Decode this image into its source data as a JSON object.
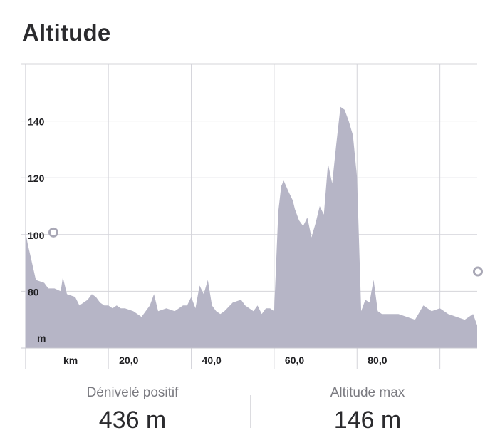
{
  "title": "Altitude",
  "chart_data": {
    "type": "area",
    "xlim": [
      -1,
      109
    ],
    "ylim": [
      60,
      160
    ],
    "x_unit_label": "km",
    "y_unit_label": "m",
    "x_tick_labels": [
      {
        "value": 20,
        "label": "20,0"
      },
      {
        "value": 40,
        "label": "40,0"
      },
      {
        "value": 60,
        "label": "60,0"
      },
      {
        "value": 80,
        "label": "80,0"
      }
    ],
    "y_tick_labels": [
      {
        "value": 80,
        "label": "80"
      },
      {
        "value": 100,
        "label": "100"
      },
      {
        "value": 120,
        "label": "120"
      },
      {
        "value": 140,
        "label": "140"
      }
    ],
    "x_gridlines": [
      0,
      20,
      40,
      60,
      80,
      100
    ],
    "y_gridlines": [
      80,
      100,
      120,
      140
    ],
    "grid": true,
    "fill_color": "#b6b5c6",
    "marker_color": "#a9a8b6",
    "start_point": {
      "x": 0,
      "y": 101
    },
    "end_point": {
      "x": 110,
      "y": 87
    },
    "x": [
      0,
      0.5,
      2.5,
      4.5,
      5.5,
      7,
      8.5,
      9,
      10,
      12,
      13,
      14,
      15,
      16,
      17,
      18,
      19,
      20,
      21,
      22,
      23,
      24,
      26,
      28,
      30,
      31,
      32,
      34,
      36,
      38,
      39,
      40,
      41,
      42,
      43,
      44,
      45,
      46,
      47,
      48,
      50,
      52,
      53,
      54,
      55,
      56,
      57,
      58,
      59,
      60,
      61,
      61.7,
      62.3,
      63.5,
      64.5,
      65,
      66,
      67,
      68,
      69,
      70,
      71,
      72,
      73,
      74,
      75,
      76,
      77,
      78,
      79,
      80,
      81,
      82,
      83,
      84,
      85,
      86,
      88,
      90,
      92,
      94,
      96,
      98,
      100,
      102,
      104,
      106,
      108,
      109.5,
      110
    ],
    "y": [
      101,
      97,
      84,
      83,
      81,
      81,
      80,
      85,
      79,
      78,
      75,
      76,
      77,
      79,
      78,
      76,
      75,
      75,
      74,
      75,
      74,
      74,
      73,
      71,
      75,
      79,
      73,
      74,
      73,
      75,
      75,
      78,
      74,
      82,
      79,
      84,
      75,
      73,
      72,
      73,
      76,
      77,
      75,
      74,
      73,
      75,
      72,
      74,
      74,
      73,
      108,
      117,
      119,
      115,
      112,
      109,
      105,
      103,
      106,
      99,
      104,
      110,
      107,
      125,
      118,
      132,
      145,
      144,
      140,
      135,
      120,
      73,
      77,
      76,
      84,
      73,
      72,
      72,
      72,
      71,
      70,
      75,
      73,
      74,
      72,
      71,
      70,
      72,
      68,
      87
    ]
  },
  "stats": {
    "gain_label": "Dénivelé positif",
    "gain_value": "436 m",
    "max_label": "Altitude max",
    "max_value": "146 m"
  }
}
